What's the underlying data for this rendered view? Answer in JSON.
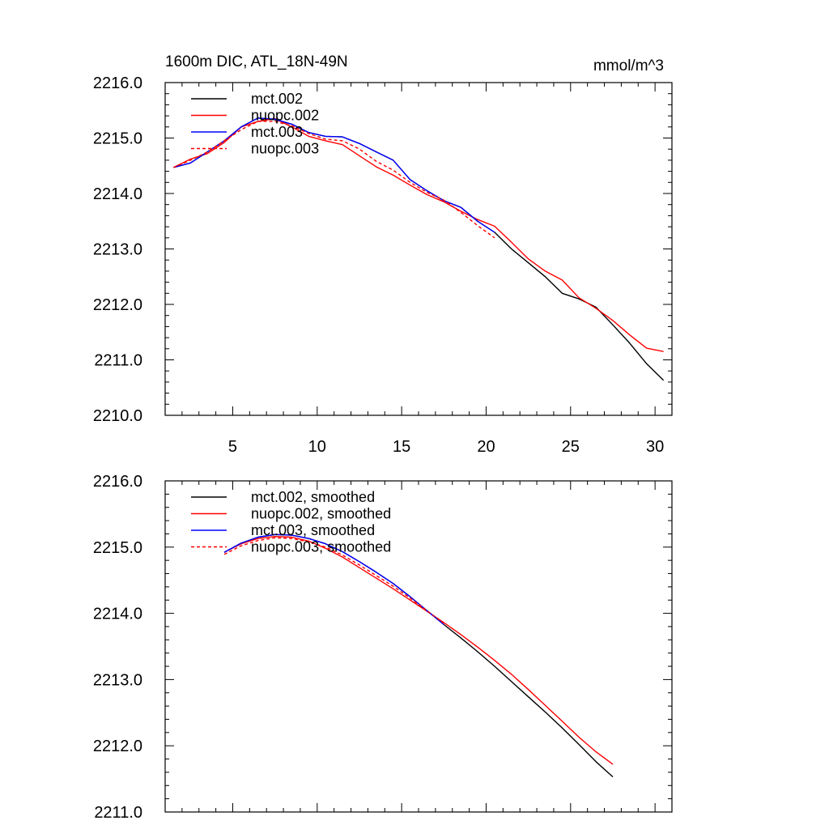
{
  "figure": {
    "title_left": "1600m DIC, ATL_18N-49N",
    "title_right": "mmol/m^3"
  },
  "chart_data": [
    {
      "type": "line",
      "title": "1600m DIC, ATL_18N-49N",
      "units": "mmol/m^3",
      "xlim": [
        1.0,
        31.0
      ],
      "ylim": [
        2210.0,
        2216.0
      ],
      "x_ticks": [
        5,
        10,
        15,
        20,
        25,
        30
      ],
      "y_ticks": [
        2210.0,
        2211.0,
        2212.0,
        2213.0,
        2214.0,
        2215.0,
        2216.0
      ],
      "x_tick_labels": [
        "5",
        "10",
        "15",
        "20",
        "25",
        "30"
      ],
      "y_tick_labels": [
        "2210.0",
        "2211.0",
        "2212.0",
        "2213.0",
        "2214.0",
        "2215.0",
        "2216.0"
      ],
      "legend_position": "top-left",
      "series": [
        {
          "name": "mct.002",
          "color": "#000000",
          "dash": "solid",
          "points": [
            [
              1.5,
              2214.47
            ],
            [
              2.5,
              2214.55
            ],
            [
              3.5,
              2214.75
            ],
            [
              4.5,
              2214.95
            ],
            [
              5.5,
              2215.2
            ],
            [
              6.5,
              2215.36
            ],
            [
              7.5,
              2215.33
            ],
            [
              8.5,
              2215.25
            ],
            [
              9.5,
              2215.1
            ],
            [
              10.5,
              2215.03
            ],
            [
              11.5,
              2215.02
            ],
            [
              12.5,
              2214.9
            ],
            [
              13.5,
              2214.75
            ],
            [
              14.5,
              2214.6
            ],
            [
              15.5,
              2214.25
            ],
            [
              16.5,
              2214.05
            ],
            [
              17.5,
              2213.87
            ],
            [
              18.5,
              2213.75
            ],
            [
              19.5,
              2213.5
            ],
            [
              20.5,
              2213.3
            ],
            [
              21.5,
              2213.0
            ],
            [
              22.5,
              2212.75
            ],
            [
              23.5,
              2212.5
            ],
            [
              24.5,
              2212.2
            ],
            [
              25.5,
              2212.1
            ],
            [
              26.5,
              2211.95
            ],
            [
              27.5,
              2211.63
            ],
            [
              28.5,
              2211.3
            ],
            [
              29.5,
              2210.93
            ],
            [
              30.5,
              2210.63
            ]
          ]
        },
        {
          "name": "nuopc.002",
          "color": "#ff0000",
          "dash": "solid",
          "points": [
            [
              1.5,
              2214.47
            ],
            [
              2.5,
              2214.62
            ],
            [
              3.5,
              2214.72
            ],
            [
              4.5,
              2214.92
            ],
            [
              5.5,
              2215.2
            ],
            [
              6.5,
              2215.3
            ],
            [
              7.5,
              2215.35
            ],
            [
              8.5,
              2215.2
            ],
            [
              9.5,
              2215.03
            ],
            [
              10.5,
              2214.95
            ],
            [
              11.5,
              2214.88
            ],
            [
              12.5,
              2214.68
            ],
            [
              13.5,
              2214.48
            ],
            [
              14.5,
              2214.33
            ],
            [
              15.5,
              2214.15
            ],
            [
              16.5,
              2213.98
            ],
            [
              17.5,
              2213.85
            ],
            [
              18.5,
              2213.68
            ],
            [
              19.5,
              2213.53
            ],
            [
              20.5,
              2213.41
            ],
            [
              21.5,
              2213.12
            ],
            [
              22.5,
              2212.82
            ],
            [
              23.5,
              2212.6
            ],
            [
              24.5,
              2212.44
            ],
            [
              25.5,
              2212.12
            ],
            [
              26.5,
              2211.93
            ],
            [
              27.5,
              2211.71
            ],
            [
              28.5,
              2211.45
            ],
            [
              29.5,
              2211.21
            ],
            [
              30.5,
              2211.15
            ]
          ]
        },
        {
          "name": "mct.003",
          "color": "#0000ff",
          "dash": "solid",
          "points": [
            [
              1.5,
              2214.47
            ],
            [
              2.5,
              2214.55
            ],
            [
              3.5,
              2214.75
            ],
            [
              4.5,
              2214.95
            ],
            [
              5.5,
              2215.2
            ],
            [
              6.5,
              2215.36
            ],
            [
              7.5,
              2215.34
            ],
            [
              8.5,
              2215.25
            ],
            [
              9.5,
              2215.1
            ],
            [
              10.5,
              2215.03
            ],
            [
              11.5,
              2215.02
            ],
            [
              12.5,
              2214.9
            ],
            [
              13.5,
              2214.75
            ],
            [
              14.5,
              2214.6
            ],
            [
              15.5,
              2214.25
            ],
            [
              16.5,
              2214.05
            ],
            [
              17.5,
              2213.87
            ],
            [
              18.5,
              2213.75
            ],
            [
              19.5,
              2213.5
            ],
            [
              20.5,
              2213.3
            ]
          ]
        },
        {
          "name": "nuopc.003",
          "color": "#ff0000",
          "dash": "dashed",
          "points": [
            [
              1.5,
              2214.47
            ],
            [
              2.5,
              2214.6
            ],
            [
              3.5,
              2214.75
            ],
            [
              4.5,
              2214.95
            ],
            [
              5.5,
              2215.15
            ],
            [
              6.5,
              2215.3
            ],
            [
              7.5,
              2215.3
            ],
            [
              8.5,
              2215.22
            ],
            [
              9.5,
              2215.08
            ],
            [
              10.5,
              2214.98
            ],
            [
              11.5,
              2214.95
            ],
            [
              12.5,
              2214.8
            ],
            [
              13.5,
              2214.58
            ],
            [
              14.5,
              2214.42
            ],
            [
              15.5,
              2214.2
            ],
            [
              16.5,
              2214.02
            ],
            [
              17.5,
              2213.88
            ],
            [
              18.5,
              2213.66
            ],
            [
              19.5,
              2213.42
            ],
            [
              20.5,
              2213.2
            ]
          ]
        }
      ]
    },
    {
      "type": "line",
      "xlim": [
        1.0,
        31.0
      ],
      "ylim": [
        2211.0,
        2216.0
      ],
      "x_ticks": [
        5,
        10,
        15,
        20,
        25,
        30
      ],
      "y_ticks": [
        2211.0,
        2212.0,
        2213.0,
        2214.0,
        2215.0,
        2216.0
      ],
      "y_tick_labels": [
        "2211.0",
        "2212.0",
        "2213.0",
        "2214.0",
        "2215.0",
        "2216.0"
      ],
      "legend_position": "top-left",
      "series": [
        {
          "name": "mct.002, smoothed",
          "color": "#000000",
          "dash": "solid",
          "points": [
            [
              4.5,
              2214.92
            ],
            [
              5.5,
              2215.06
            ],
            [
              6.5,
              2215.15
            ],
            [
              7.5,
              2215.19
            ],
            [
              8.5,
              2215.18
            ],
            [
              9.5,
              2215.13
            ],
            [
              10.5,
              2215.05
            ],
            [
              11.5,
              2214.93
            ],
            [
              12.5,
              2214.78
            ],
            [
              13.5,
              2214.62
            ],
            [
              14.5,
              2214.45
            ],
            [
              15.5,
              2214.25
            ],
            [
              16.5,
              2214.04
            ],
            [
              17.5,
              2213.83
            ],
            [
              18.5,
              2213.63
            ],
            [
              19.5,
              2213.42
            ],
            [
              20.5,
              2213.2
            ],
            [
              21.5,
              2212.97
            ],
            [
              22.5,
              2212.74
            ],
            [
              23.5,
              2212.51
            ],
            [
              24.5,
              2212.27
            ],
            [
              25.5,
              2212.02
            ],
            [
              26.5,
              2211.76
            ],
            [
              27.5,
              2211.53
            ]
          ]
        },
        {
          "name": "nuopc.002, smoothed",
          "color": "#ff0000",
          "dash": "solid",
          "points": [
            [
              4.5,
              2214.92
            ],
            [
              5.5,
              2215.05
            ],
            [
              6.5,
              2215.13
            ],
            [
              7.5,
              2215.16
            ],
            [
              8.5,
              2215.15
            ],
            [
              9.5,
              2215.09
            ],
            [
              10.5,
              2214.98
            ],
            [
              11.5,
              2214.85
            ],
            [
              12.5,
              2214.69
            ],
            [
              13.5,
              2214.53
            ],
            [
              14.5,
              2214.37
            ],
            [
              15.5,
              2214.2
            ],
            [
              16.5,
              2214.03
            ],
            [
              17.5,
              2213.86
            ],
            [
              18.5,
              2213.68
            ],
            [
              19.5,
              2213.49
            ],
            [
              20.5,
              2213.29
            ],
            [
              21.5,
              2213.08
            ],
            [
              22.5,
              2212.85
            ],
            [
              23.5,
              2212.61
            ],
            [
              24.5,
              2212.37
            ],
            [
              25.5,
              2212.13
            ],
            [
              26.5,
              2211.91
            ],
            [
              27.5,
              2211.72
            ]
          ]
        },
        {
          "name": "mct.003, smoothed",
          "color": "#0000ff",
          "dash": "solid",
          "points": [
            [
              4.5,
              2214.92
            ],
            [
              5.5,
              2215.06
            ],
            [
              6.5,
              2215.15
            ],
            [
              7.5,
              2215.19
            ],
            [
              8.5,
              2215.18
            ],
            [
              9.5,
              2215.13
            ],
            [
              10.5,
              2215.05
            ],
            [
              11.5,
              2214.93
            ],
            [
              12.5,
              2214.78
            ],
            [
              13.5,
              2214.62
            ],
            [
              14.5,
              2214.45
            ],
            [
              15.5,
              2214.25
            ],
            [
              16.5,
              2214.04
            ],
            [
              17.5,
              2213.83
            ]
          ]
        },
        {
          "name": "nuopc.003, smoothed",
          "color": "#ff0000",
          "dash": "dashed",
          "points": [
            [
              4.5,
              2214.89
            ],
            [
              5.5,
              2215.02
            ],
            [
              6.5,
              2215.1
            ],
            [
              7.5,
              2215.14
            ],
            [
              8.5,
              2215.13
            ],
            [
              9.5,
              2215.08
            ],
            [
              10.5,
              2215.0
            ],
            [
              11.5,
              2214.88
            ],
            [
              12.5,
              2214.73
            ],
            [
              13.5,
              2214.57
            ],
            [
              14.5,
              2214.41
            ],
            [
              15.5,
              2214.23
            ],
            [
              16.5,
              2214.04
            ],
            [
              17.5,
              2213.85
            ]
          ]
        }
      ]
    }
  ]
}
